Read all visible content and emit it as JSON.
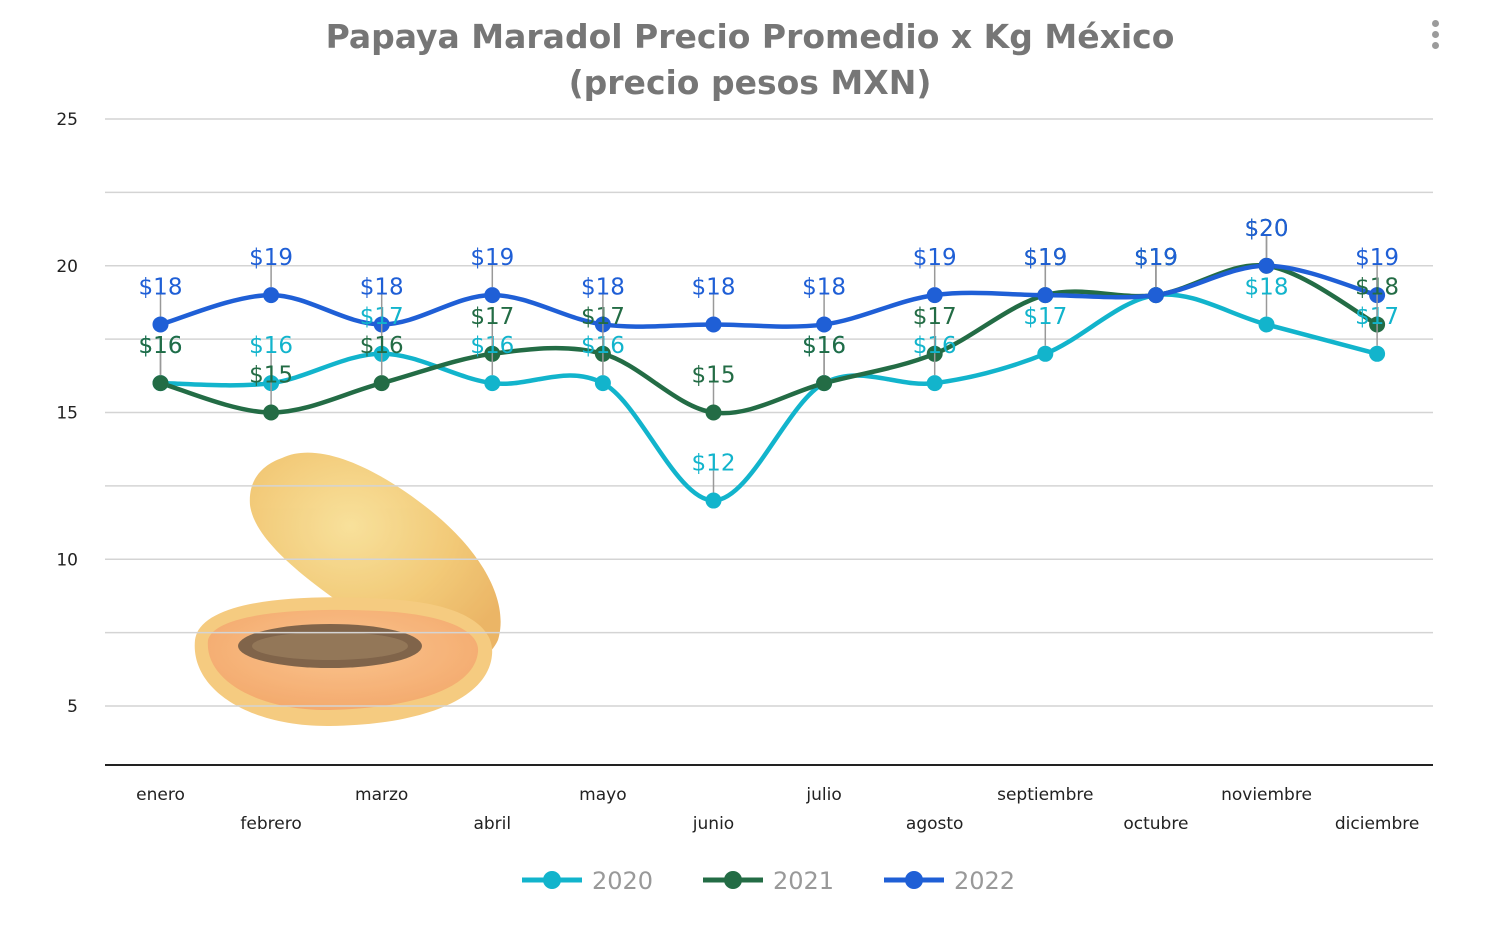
{
  "title_lines": [
    "Papaya Maradol Precio Promedio x Kg México",
    "(precio pesos MXN)"
  ],
  "chart_data": {
    "type": "line",
    "title": "Papaya Maradol Precio Promedio x Kg México (precio pesos MXN)",
    "categories": [
      "enero",
      "febrero",
      "marzo",
      "abril",
      "mayo",
      "junio",
      "julio",
      "agosto",
      "septiembre",
      "octubre",
      "noviembre",
      "diciembre"
    ],
    "series": [
      {
        "name": "2020",
        "color": "#12b4cc",
        "values": [
          16,
          16,
          17,
          16,
          16,
          12,
          16,
          16,
          17,
          19,
          18,
          17
        ],
        "labels": [
          "$16",
          "$16",
          "$17",
          "$16",
          "$16",
          "$12",
          "$16",
          "$16",
          "$17",
          "$19",
          "$18",
          "$17"
        ]
      },
      {
        "name": "2021",
        "color": "#236c45",
        "values": [
          16,
          15,
          16,
          17,
          17,
          15,
          16,
          17,
          19,
          19,
          20,
          18
        ],
        "labels": [
          "$16",
          "$15",
          "$16",
          "$17",
          "$17",
          "$15",
          "$16",
          "$17",
          "$19",
          "$19",
          "$20",
          "$18"
        ]
      },
      {
        "name": "2022",
        "color": "#1f5fd6",
        "values": [
          18,
          19,
          18,
          19,
          18,
          18,
          18,
          19,
          19,
          19,
          20,
          19
        ],
        "labels": [
          "$18",
          "$19",
          "$18",
          "$19",
          "$18",
          "$18",
          "$18",
          "$19",
          "$19",
          "$19",
          "$20",
          "$19"
        ]
      }
    ],
    "y_ticks": [
      5,
      10,
      15,
      20,
      25
    ],
    "ylim": [
      3,
      25
    ],
    "grid": true,
    "legend_position": "bottom",
    "smooth": true,
    "image_icon": "papaya-image"
  }
}
